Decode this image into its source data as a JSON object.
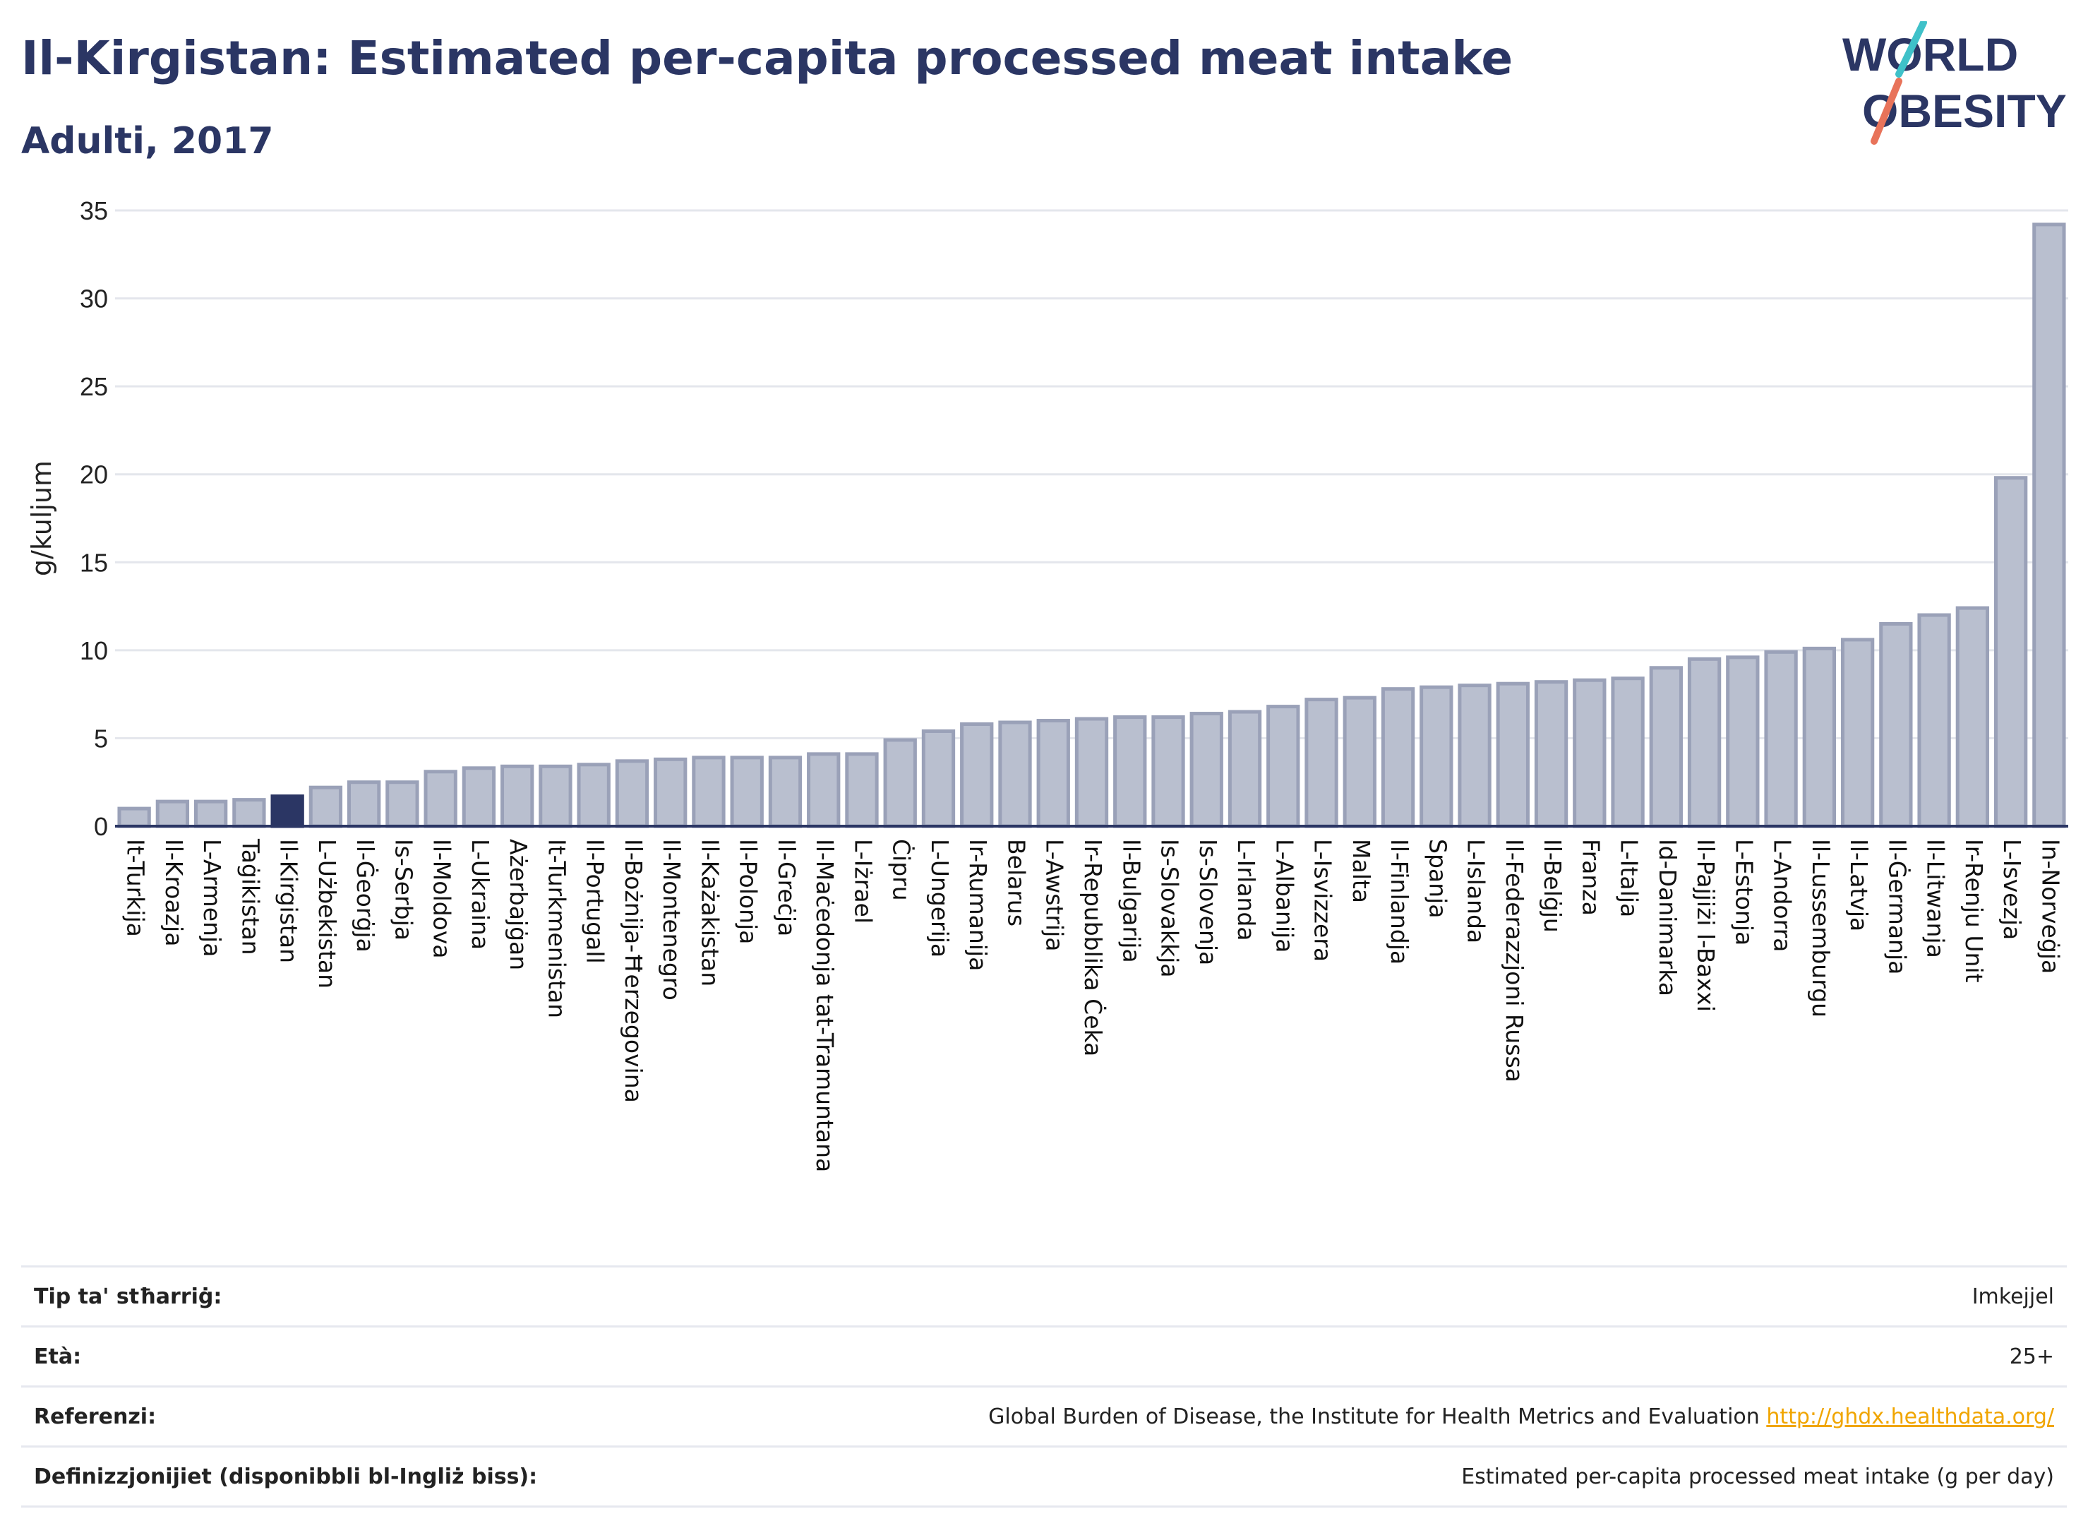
{
  "header": {
    "title": "Il-Kirgistan: Estimated per-capita processed meat intake",
    "subtitle": "Adulti, 2017",
    "logo_line1": "WORLD",
    "logo_line2": "OBESITY"
  },
  "colors": {
    "title": "#2b3664",
    "bar": "#b9bfcf",
    "bar_border": "#9aa1b8",
    "highlight": "#2b3664",
    "logo_teal": "#3fc1c9",
    "logo_coral": "#e8735a",
    "link": "#f0a500"
  },
  "chart_data": {
    "type": "bar",
    "ylabel": "g/kuljum",
    "ylim": [
      0,
      35
    ],
    "yticks": [
      0,
      5,
      10,
      15,
      20,
      25,
      30,
      35
    ],
    "grid": true,
    "highlight_category": "Il-Kirgistan",
    "categories": [
      "It-Turkija",
      "Il-Kroazja",
      "L-Armenja",
      "Taġikistan",
      "Il-Kirgistan",
      "L-Użbekistan",
      "Il-Ġeorġja",
      "Is-Serbja",
      "Il-Moldova",
      "L-Ukraina",
      "Ażerbajġan",
      "It-Turkmenistan",
      "Il-Portugall",
      "Il-Bożnija-Ħerzegovina",
      "Il-Montenegro",
      "Il-Każakistan",
      "Il-Polonja",
      "Il-Greċja",
      "Il-Maċedonja tat-Tramuntana",
      "L-Iżrael",
      "Ċipru",
      "L-Ungerija",
      "Ir-Rumanija",
      "Belarus",
      "L-Awstrija",
      "Ir-Repubblika Ċeka",
      "Il-Bulgarija",
      "Is-Slovakkja",
      "Is-Slovenja",
      "L-Irlanda",
      "L-Albanija",
      "L-Isvizzera",
      "Malta",
      "Il-Finlandja",
      "Spanja",
      "L-Islanda",
      "Il-Federazzjoni Russa",
      "Il-Belġju",
      "Franza",
      "L-Italja",
      "Id-Danimarka",
      "Il-Pajjiżi l-Baxxi",
      "L-Estonja",
      "L-Andorra",
      "Il-Lussemburgu",
      "Il-Latvja",
      "Il-Ġermanja",
      "Il-Litwanja",
      "Ir-Renju Unit",
      "L-Isvezja",
      "In-Norveġja"
    ],
    "values": [
      1.0,
      1.4,
      1.4,
      1.5,
      1.7,
      2.2,
      2.5,
      2.5,
      3.1,
      3.3,
      3.4,
      3.4,
      3.5,
      3.7,
      3.8,
      3.9,
      3.9,
      3.9,
      4.1,
      4.1,
      4.9,
      5.4,
      5.8,
      5.9,
      6.0,
      6.1,
      6.2,
      6.2,
      6.4,
      6.5,
      6.8,
      7.2,
      7.3,
      7.8,
      7.9,
      8.0,
      8.1,
      8.2,
      8.3,
      8.4,
      9.0,
      9.5,
      9.6,
      9.9,
      10.1,
      10.6,
      11.5,
      12.0,
      12.4,
      19.8,
      34.2
    ]
  },
  "info": {
    "rows": [
      {
        "label": "Tip ta' stħarriġ:",
        "value": "Imkejjel"
      },
      {
        "label": "Età:",
        "value": "25+"
      },
      {
        "label": "Referenzi:",
        "value": "Global Burden of Disease, the Institute for Health Metrics and Evaluation ",
        "link": "http://ghdx.healthdata.org/"
      },
      {
        "label": "Definizzjonijiet (disponibbli bl-Ingliż biss):",
        "value": "Estimated per-capita processed meat intake (g per day)"
      }
    ]
  }
}
